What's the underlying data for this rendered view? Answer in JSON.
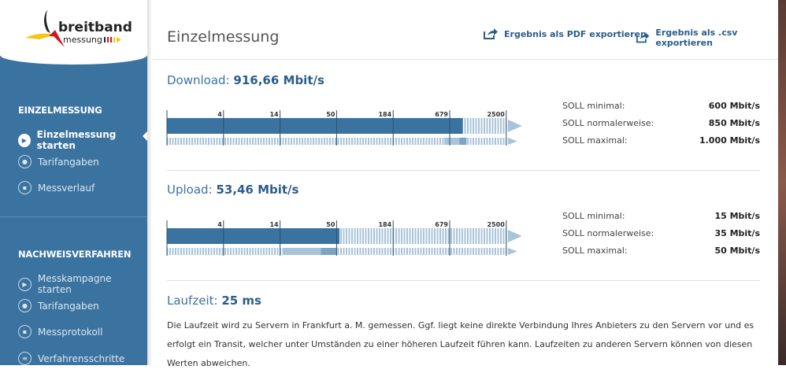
{
  "logo": {
    "line1": "breitband",
    "line2": "messung"
  },
  "sidebar": {
    "section1": "EINZELMESSUNG",
    "items1": [
      {
        "label": "Einzelmessung starten",
        "icon": "play-icon"
      },
      {
        "label": "Tarifangaben",
        "icon": "user-tariff-icon"
      },
      {
        "label": "Messverlauf",
        "icon": "calendar-icon"
      }
    ],
    "section2": "NACHWEISVERFAHREN",
    "items2": [
      {
        "label": "Messkampagne starten",
        "icon": "play-icon"
      },
      {
        "label": "Tarifangaben",
        "icon": "user-tariff-icon"
      },
      {
        "label": "Messprotokoll",
        "icon": "document-icon"
      },
      {
        "label": "Verfahrensschritte",
        "icon": "list-icon"
      }
    ]
  },
  "header": {
    "title": "Einzelmessung",
    "export_pdf": "Ergebnis als PDF exportieren",
    "export_csv": "Ergebnis als .csv exportieren"
  },
  "scale_ticks": [
    4,
    14,
    50,
    184,
    679,
    2500
  ],
  "download": {
    "label": "Download:",
    "value": "916,66 Mbit/s",
    "measured": 916.66,
    "soll_min": 600,
    "soll_normal": 850,
    "soll_max": 1000,
    "specs": [
      {
        "label": "SOLL minimal:",
        "value": "600 Mbit/s"
      },
      {
        "label": "SOLL normalerweise:",
        "value": "850 Mbit/s"
      },
      {
        "label": "SOLL maximal:",
        "value": "1.000 Mbit/s"
      }
    ]
  },
  "upload": {
    "label": "Upload:",
    "value": "53,46 Mbit/s",
    "measured": 53.46,
    "soll_min": 15,
    "soll_normal": 35,
    "soll_max": 50,
    "specs": [
      {
        "label": "SOLL minimal:",
        "value": "15 Mbit/s"
      },
      {
        "label": "SOLL normalerweise:",
        "value": "35 Mbit/s"
      },
      {
        "label": "SOLL maximal:",
        "value": "50 Mbit/s"
      }
    ]
  },
  "latency": {
    "label": "Laufzeit:",
    "value": "25 ms"
  },
  "info_text": "Die Laufzeit wird zu Servern in Frankfurt a. M. gemessen. Ggf. liegt keine direkte Verbindung Ihres Anbieters zu den Servern vor und es erfolgt ein Transit, welcher unter Umständen zu einer höheren Laufzeit führen kann. Laufzeiten zu anderen Servern können von diesen Werten abweichen.",
  "colors": {
    "primary": "#3b73a0",
    "light": "#a9c3d8",
    "dark": "#2c5d8a"
  }
}
